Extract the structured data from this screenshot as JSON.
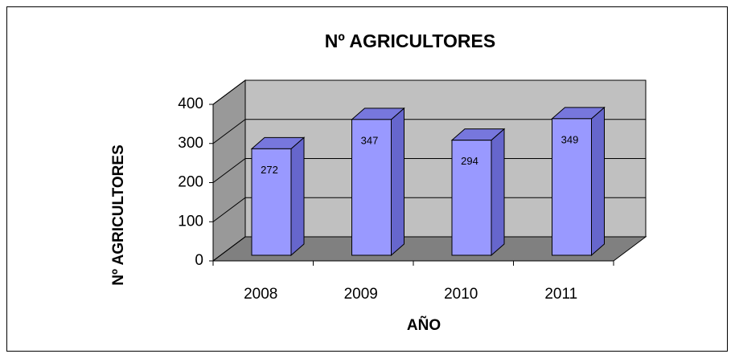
{
  "chart_data": {
    "type": "bar",
    "title": "Nº AGRICULTORES",
    "ylabel": "Nº AGRICULTORES",
    "xlabel": "AÑO",
    "categories": [
      "2008",
      "2009",
      "2010",
      "2011"
    ],
    "values": [
      272,
      347,
      294,
      349
    ],
    "color": "#9999ff",
    "ylim": [
      0,
      400
    ],
    "yticks": [
      0,
      100,
      200,
      300,
      400
    ],
    "grid": true
  }
}
